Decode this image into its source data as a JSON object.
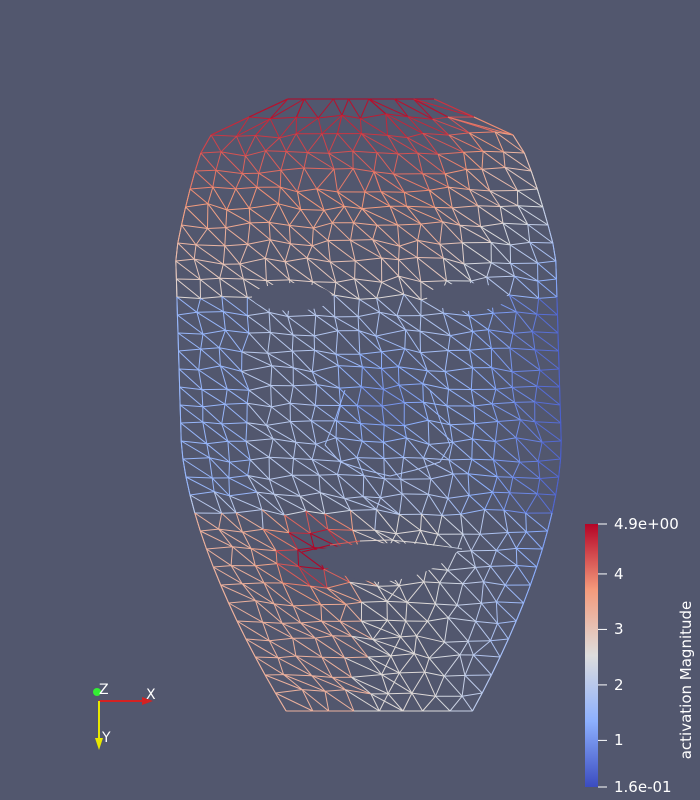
{
  "scalar_bar": {
    "title": "activation Magnitude",
    "max_label": "4.9e+00",
    "min_label": "1.6e-01",
    "min_value": 0.16,
    "max_value": 4.9,
    "ticks": [
      {
        "label": "4",
        "value": 4
      },
      {
        "label": "3",
        "value": 3
      },
      {
        "label": "2",
        "value": 2
      },
      {
        "label": "1",
        "value": 1
      }
    ],
    "colormap": [
      "#3b4cc0",
      "#8db0fe",
      "#dddddd",
      "#f49a7b",
      "#b40426"
    ]
  },
  "orientation_axes": {
    "x_label": "X",
    "y_label": "Y",
    "z_label": "Z",
    "x_color": "#d42222",
    "y_color": "#e8e800",
    "z_color": "#33ee33"
  },
  "scene": {
    "background": "#52576e",
    "mesh_type": "wireframe face mask"
  }
}
